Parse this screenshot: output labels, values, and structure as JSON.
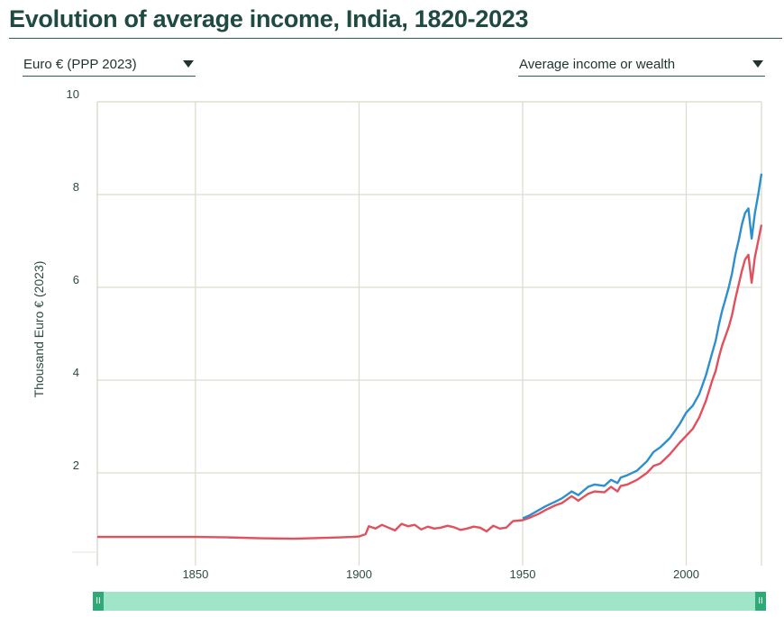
{
  "title": "Evolution of average income, India, 1820-2023",
  "currency_dropdown": {
    "selected": "Euro € (PPP 2023)"
  },
  "indicator_dropdown": {
    "selected": "Average income or wealth"
  },
  "range_slider": {
    "handle_glyph": "II",
    "start_fraction": 0.0,
    "end_fraction": 1.0
  },
  "colors": {
    "series_blue": "#2e8fcf",
    "series_red": "#e0505d",
    "grid": "#dcdcd0",
    "axis_text": "#2d4a44"
  },
  "chart_data": {
    "type": "line",
    "title": "",
    "xlabel": "",
    "ylabel": "Thousand Euro € (2023)",
    "xlim": [
      1820,
      2023
    ],
    "ylim": [
      0,
      10
    ],
    "x_ticks": [
      1850,
      1900,
      1950,
      2000
    ],
    "y_ticks": [
      2,
      4,
      6,
      8,
      10
    ],
    "grid": true,
    "series": [
      {
        "color": "#e0505d",
        "points": [
          [
            1820,
            0.62
          ],
          [
            1830,
            0.62
          ],
          [
            1840,
            0.62
          ],
          [
            1850,
            0.62
          ],
          [
            1860,
            0.61
          ],
          [
            1870,
            0.59
          ],
          [
            1880,
            0.58
          ],
          [
            1890,
            0.6
          ],
          [
            1898,
            0.62
          ],
          [
            1900,
            0.63
          ],
          [
            1902,
            0.68
          ],
          [
            1903,
            0.85
          ],
          [
            1905,
            0.8
          ],
          [
            1907,
            0.88
          ],
          [
            1909,
            0.82
          ],
          [
            1911,
            0.76
          ],
          [
            1913,
            0.9
          ],
          [
            1915,
            0.85
          ],
          [
            1917,
            0.88
          ],
          [
            1919,
            0.78
          ],
          [
            1921,
            0.84
          ],
          [
            1923,
            0.8
          ],
          [
            1925,
            0.82
          ],
          [
            1927,
            0.86
          ],
          [
            1929,
            0.83
          ],
          [
            1931,
            0.77
          ],
          [
            1933,
            0.8
          ],
          [
            1935,
            0.84
          ],
          [
            1937,
            0.82
          ],
          [
            1939,
            0.74
          ],
          [
            1941,
            0.86
          ],
          [
            1943,
            0.8
          ],
          [
            1945,
            0.82
          ],
          [
            1947,
            0.96
          ],
          [
            1950,
            0.98
          ],
          [
            1952,
            1.03
          ],
          [
            1955,
            1.12
          ],
          [
            1957,
            1.2
          ],
          [
            1960,
            1.3
          ],
          [
            1962,
            1.35
          ],
          [
            1965,
            1.5
          ],
          [
            1967,
            1.4
          ],
          [
            1970,
            1.55
          ],
          [
            1972,
            1.6
          ],
          [
            1975,
            1.58
          ],
          [
            1977,
            1.7
          ],
          [
            1979,
            1.6
          ],
          [
            1980,
            1.72
          ],
          [
            1982,
            1.75
          ],
          [
            1985,
            1.85
          ],
          [
            1988,
            2.0
          ],
          [
            1990,
            2.15
          ],
          [
            1992,
            2.2
          ],
          [
            1995,
            2.4
          ],
          [
            1998,
            2.65
          ],
          [
            2000,
            2.8
          ],
          [
            2002,
            2.95
          ],
          [
            2004,
            3.2
          ],
          [
            2006,
            3.55
          ],
          [
            2008,
            4.0
          ],
          [
            2009,
            4.2
          ],
          [
            2010,
            4.5
          ],
          [
            2011,
            4.75
          ],
          [
            2012,
            4.95
          ],
          [
            2013,
            5.15
          ],
          [
            2014,
            5.4
          ],
          [
            2015,
            5.75
          ],
          [
            2016,
            6.05
          ],
          [
            2017,
            6.35
          ],
          [
            2018,
            6.6
          ],
          [
            2019,
            6.7
          ],
          [
            2020,
            6.1
          ],
          [
            2021,
            6.65
          ],
          [
            2022,
            7.0
          ],
          [
            2023,
            7.35
          ]
        ]
      },
      {
        "color": "#2e8fcf",
        "points": [
          [
            1950,
            1.02
          ],
          [
            1952,
            1.08
          ],
          [
            1955,
            1.2
          ],
          [
            1957,
            1.28
          ],
          [
            1960,
            1.38
          ],
          [
            1962,
            1.45
          ],
          [
            1965,
            1.6
          ],
          [
            1967,
            1.52
          ],
          [
            1970,
            1.7
          ],
          [
            1972,
            1.75
          ],
          [
            1975,
            1.72
          ],
          [
            1977,
            1.85
          ],
          [
            1979,
            1.78
          ],
          [
            1980,
            1.9
          ],
          [
            1982,
            1.95
          ],
          [
            1985,
            2.05
          ],
          [
            1988,
            2.25
          ],
          [
            1990,
            2.45
          ],
          [
            1992,
            2.55
          ],
          [
            1995,
            2.75
          ],
          [
            1998,
            3.05
          ],
          [
            2000,
            3.3
          ],
          [
            2002,
            3.45
          ],
          [
            2004,
            3.7
          ],
          [
            2006,
            4.1
          ],
          [
            2008,
            4.6
          ],
          [
            2009,
            4.85
          ],
          [
            2010,
            5.2
          ],
          [
            2011,
            5.5
          ],
          [
            2012,
            5.75
          ],
          [
            2013,
            6.0
          ],
          [
            2014,
            6.3
          ],
          [
            2015,
            6.7
          ],
          [
            2016,
            7.0
          ],
          [
            2017,
            7.35
          ],
          [
            2018,
            7.6
          ],
          [
            2019,
            7.7
          ],
          [
            2020,
            7.05
          ],
          [
            2021,
            7.6
          ],
          [
            2022,
            8.0
          ],
          [
            2023,
            8.45
          ]
        ]
      }
    ]
  }
}
